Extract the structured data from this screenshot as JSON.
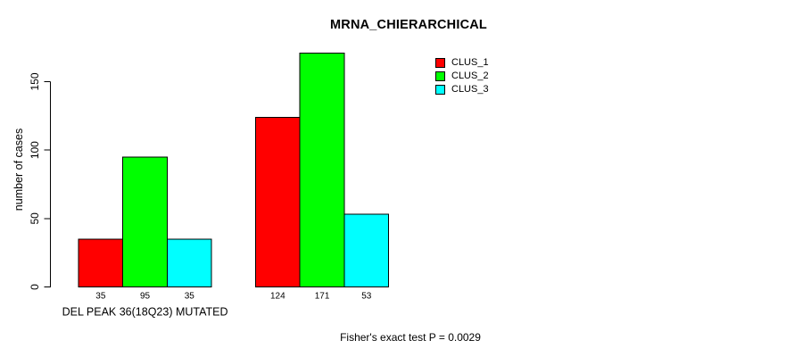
{
  "title": "MRNA_CHIERARCHICAL",
  "chart_data": {
    "type": "bar",
    "title": "MRNA_CHIERARCHICAL",
    "xlabel": "",
    "ylabel": "number of cases",
    "categories": [
      "DEL PEAK 36(18Q23) MUTATED",
      ""
    ],
    "series": [
      {
        "name": "CLUS_1",
        "color": "#ff0000",
        "values": [
          35,
          124
        ]
      },
      {
        "name": "CLUS_2",
        "color": "#00ff00",
        "values": [
          95,
          171
        ]
      },
      {
        "name": "CLUS_3",
        "color": "#00ffff",
        "values": [
          35,
          53
        ]
      }
    ],
    "yticks": [
      0,
      50,
      100,
      150
    ],
    "ylim": [
      0,
      150
    ],
    "grid": false,
    "legend_position": "top-right",
    "show_value_labels": true,
    "bar_outline_color": "#000000",
    "text_color": "#000000",
    "background_color": "#ffffff",
    "annotation": "Fisher's exact test P = 0.0029"
  }
}
